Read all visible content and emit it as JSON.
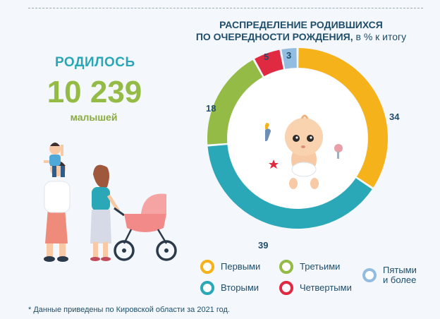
{
  "header": {
    "born_label": "РОДИЛОСЬ",
    "born_number": "10 239",
    "born_sub": "малышей"
  },
  "chart_data": {
    "type": "pie",
    "title_line1": "РАСПРЕДЕЛЕНИЕ РОДИВШИХСЯ",
    "title_line2": "ПО ОЧЕРЕДНОСТИ РОЖДЕНИЯ,",
    "title_unit": " в % к итогу",
    "categories": [
      "Первыми",
      "Вторыми",
      "Третьими",
      "Четвертыми",
      "Пятыми и более"
    ],
    "values": [
      34,
      39,
      18,
      5,
      3
    ],
    "colors": [
      "#f5b21a",
      "#2aa8b7",
      "#93bb46",
      "#e02a41",
      "#93bde0"
    ],
    "legend": {
      "first": "Первыми",
      "second": "Вторыми",
      "third": "Третьими",
      "fourth": "Четвертыми",
      "fifth_line1": "Пятыми",
      "fifth_line2": "и более"
    }
  },
  "footnote": "* Данные приведены  по Кировской области  за  2021 год."
}
